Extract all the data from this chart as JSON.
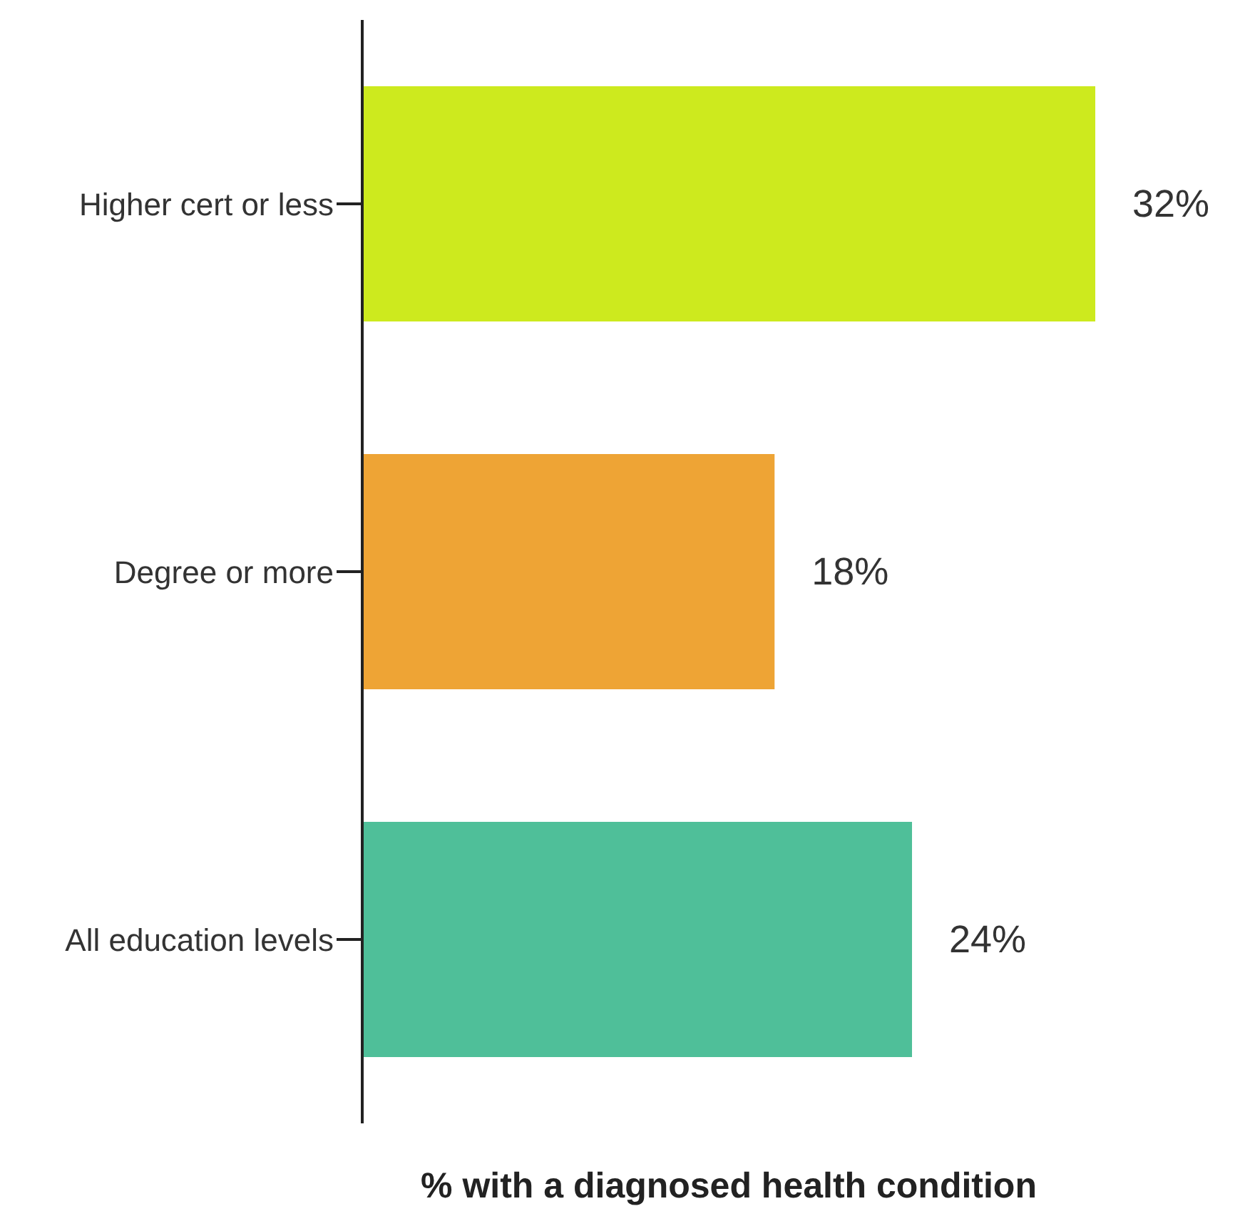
{
  "chart_data": {
    "type": "bar",
    "orientation": "horizontal",
    "xlabel": "% with a diagnosed health condition",
    "categories": [
      "Higher cert or less",
      "Degree or more",
      "All education levels"
    ],
    "values": [
      32,
      18,
      24
    ],
    "colors": [
      "#cdea1e",
      "#eea435",
      "#4fbf99"
    ],
    "value_labels": [
      "32%",
      "18%",
      "24%"
    ],
    "xlim": [
      0,
      32
    ],
    "tick_labels": "y",
    "grid": false,
    "legend": false
  }
}
